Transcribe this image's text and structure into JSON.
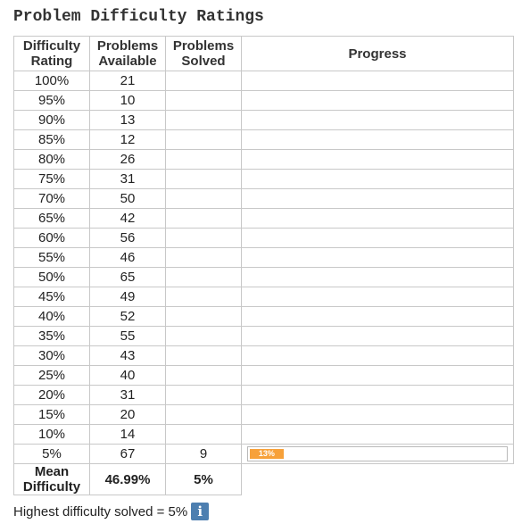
{
  "title": "Problem Difficulty Ratings",
  "headers": {
    "difficulty": [
      "Difficulty",
      "Rating"
    ],
    "available": [
      "Problems",
      "Available"
    ],
    "solved": [
      "Problems",
      "Solved"
    ],
    "progress": "Progress"
  },
  "rows": [
    {
      "rating": "100%",
      "available": "21",
      "solved": ""
    },
    {
      "rating": "95%",
      "available": "10",
      "solved": ""
    },
    {
      "rating": "90%",
      "available": "13",
      "solved": ""
    },
    {
      "rating": "85%",
      "available": "12",
      "solved": ""
    },
    {
      "rating": "80%",
      "available": "26",
      "solved": ""
    },
    {
      "rating": "75%",
      "available": "31",
      "solved": ""
    },
    {
      "rating": "70%",
      "available": "50",
      "solved": ""
    },
    {
      "rating": "65%",
      "available": "42",
      "solved": ""
    },
    {
      "rating": "60%",
      "available": "56",
      "solved": ""
    },
    {
      "rating": "55%",
      "available": "46",
      "solved": ""
    },
    {
      "rating": "50%",
      "available": "65",
      "solved": ""
    },
    {
      "rating": "45%",
      "available": "49",
      "solved": ""
    },
    {
      "rating": "40%",
      "available": "52",
      "solved": ""
    },
    {
      "rating": "35%",
      "available": "55",
      "solved": ""
    },
    {
      "rating": "30%",
      "available": "43",
      "solved": ""
    },
    {
      "rating": "25%",
      "available": "40",
      "solved": ""
    },
    {
      "rating": "20%",
      "available": "31",
      "solved": ""
    },
    {
      "rating": "15%",
      "available": "20",
      "solved": ""
    },
    {
      "rating": "10%",
      "available": "14",
      "solved": ""
    },
    {
      "rating": "5%",
      "available": "67",
      "solved": "9",
      "progress_pct": 13,
      "progress_label": "13%"
    }
  ],
  "mean": {
    "label": [
      "Mean",
      "Difficulty"
    ],
    "available": "46.99%",
    "solved": "5%"
  },
  "footer": {
    "text": "Highest difficulty solved = 5%",
    "info_glyph": "i"
  },
  "colors": {
    "progress_fill": "#f7a13a",
    "info_button": "#4d7fb0"
  }
}
